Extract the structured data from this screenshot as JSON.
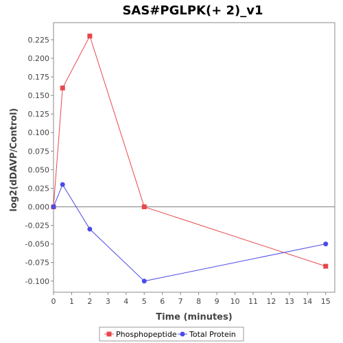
{
  "chart_data": {
    "type": "line",
    "title": "SAS#PGLPK(+ 2)_v1",
    "xlabel": "Time (minutes)",
    "ylabel": "log2(dDAVP/Control)",
    "xlim": [
      0,
      15.5
    ],
    "ylim": [
      -0.115,
      0.248
    ],
    "x_ticks": [
      0,
      1,
      2,
      3,
      4,
      5,
      6,
      7,
      8,
      9,
      10,
      11,
      12,
      13,
      14,
      15
    ],
    "x_tick_labels": [
      "0",
      "1",
      "2",
      "3",
      "4",
      "5",
      "6",
      "7",
      "8",
      "9",
      "10",
      "11",
      "12",
      "13",
      "14",
      "15"
    ],
    "y_ticks": [
      -0.1,
      -0.075,
      -0.05,
      -0.025,
      0,
      0.025,
      0.05,
      0.075,
      0.1,
      0.125,
      0.15,
      0.175,
      0.2,
      0.225
    ],
    "y_tick_labels": [
      "-0.100",
      "-0.075",
      "-0.050",
      "-0.025",
      "0.000",
      "0.025",
      "0.050",
      "0.075",
      "0.100",
      "0.125",
      "0.150",
      "0.175",
      "0.200",
      "0.225"
    ],
    "zero_line": true,
    "grid": false,
    "legend_position": "bottom",
    "series": [
      {
        "name": "Phosphopeptide",
        "color": "#e8474b",
        "marker": "square",
        "x": [
          0,
          0.5,
          2,
          5,
          15
        ],
        "y": [
          0,
          0.16,
          0.23,
          0,
          -0.08
        ]
      },
      {
        "name": "Total Protein",
        "color": "#4b4be8",
        "marker": "circle",
        "x": [
          0,
          0.5,
          2,
          5,
          15
        ],
        "y": [
          0,
          0.03,
          -0.03,
          -0.1,
          -0.05
        ]
      }
    ]
  }
}
